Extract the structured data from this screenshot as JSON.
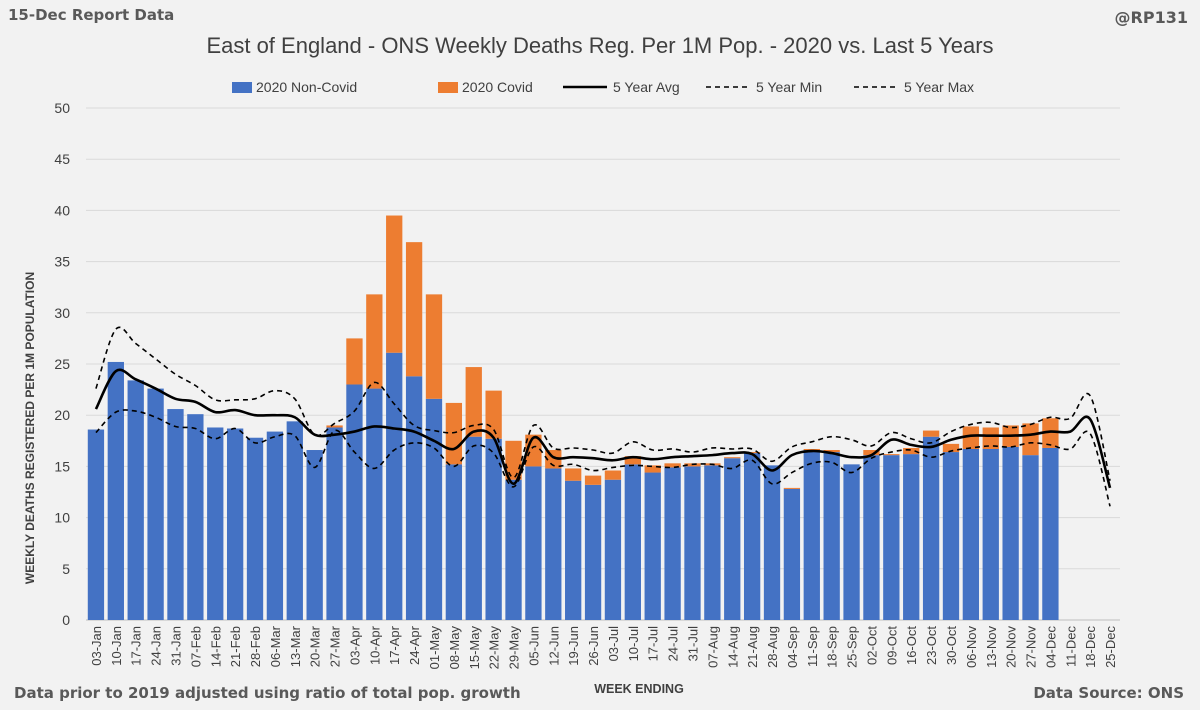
{
  "header": {
    "report_label": "15-Dec Report Data",
    "handle": "@RP131"
  },
  "footer": {
    "note": "Data prior to 2019 adjusted using ratio of total pop. growth",
    "source": "Data Source: ONS"
  },
  "colors": {
    "non_covid": "#4472c4",
    "covid": "#ed7d31",
    "avg": "#000000",
    "band": "#000000",
    "grid": "#d9d9d9",
    "text": "#404040"
  },
  "chart_data": {
    "type": "bar",
    "stacked": true,
    "title": "East of England - ONS Weekly Deaths Reg. Per 1M Pop. - 2020 vs. Last 5 Years",
    "xlabel": "WEEK ENDING",
    "ylabel": "WEEKLY DEATHS REGISTERED PER 1M POPULATION",
    "ylim": [
      0,
      50
    ],
    "yticks": [
      0,
      5,
      10,
      15,
      20,
      25,
      30,
      35,
      40,
      45,
      50
    ],
    "categories": [
      "03-Jan",
      "10-Jan",
      "17-Jan",
      "24-Jan",
      "31-Jan",
      "07-Feb",
      "14-Feb",
      "21-Feb",
      "28-Feb",
      "06-Mar",
      "13-Mar",
      "20-Mar",
      "27-Mar",
      "03-Apr",
      "10-Apr",
      "17-Apr",
      "24-Apr",
      "01-May",
      "08-May",
      "15-May",
      "22-May",
      "29-May",
      "05-Jun",
      "12-Jun",
      "19-Jun",
      "26-Jun",
      "03-Jul",
      "10-Jul",
      "17-Jul",
      "24-Jul",
      "31-Jul",
      "07-Aug",
      "14-Aug",
      "21-Aug",
      "28-Aug",
      "04-Sep",
      "11-Sep",
      "18-Sep",
      "25-Sep",
      "02-Oct",
      "09-Oct",
      "16-Oct",
      "23-Oct",
      "30-Oct",
      "06-Nov",
      "13-Nov",
      "20-Nov",
      "27-Nov",
      "04-Dec",
      "11-Dec",
      "18-Dec",
      "25-Dec"
    ],
    "series": [
      {
        "name": "2020 Non-Covid",
        "kind": "bar",
        "values": [
          18.6,
          25.2,
          23.4,
          22.6,
          20.6,
          20.1,
          18.8,
          18.7,
          17.8,
          18.4,
          19.4,
          16.6,
          18.8,
          23.0,
          22.6,
          26.1,
          23.8,
          21.6,
          15.2,
          17.9,
          17.7,
          13.7,
          15.0,
          14.8,
          13.6,
          13.2,
          13.7,
          15.2,
          14.4,
          14.9,
          15.0,
          15.1,
          15.8,
          16.3,
          15.1,
          12.8,
          16.6,
          16.4,
          15.2,
          16.1,
          16.1,
          16.2,
          17.9,
          16.4,
          16.7,
          16.7,
          16.9,
          16.1,
          16.8,
          null,
          null,
          null
        ]
      },
      {
        "name": "2020 Covid",
        "kind": "bar",
        "values": [
          0,
          0,
          0,
          0,
          0,
          0,
          0,
          0,
          0,
          0,
          0,
          0,
          0.2,
          4.5,
          9.2,
          13.4,
          13.1,
          10.2,
          6.0,
          6.8,
          4.7,
          3.8,
          3.1,
          1.8,
          1.2,
          0.9,
          0.9,
          0.8,
          0.7,
          0.4,
          0.3,
          0.2,
          0.1,
          0.1,
          0,
          0.1,
          0.1,
          0.2,
          0,
          0.5,
          0.1,
          0.6,
          0.6,
          0.8,
          2.2,
          2.1,
          2.1,
          3.1,
          2.9,
          null,
          null,
          null
        ]
      },
      {
        "name": "5 Year Avg",
        "kind": "line",
        "values": [
          20.6,
          24.3,
          23.5,
          22.6,
          21.6,
          21.3,
          20.3,
          20.5,
          20.0,
          20.0,
          19.8,
          18.1,
          18.1,
          18.4,
          18.9,
          18.7,
          18.4,
          17.5,
          16.7,
          18.4,
          17.8,
          13.3,
          17.8,
          15.9,
          15.9,
          15.8,
          15.6,
          15.9,
          15.7,
          15.9,
          16.0,
          16.1,
          16.3,
          16.2,
          14.6,
          16.1,
          16.5,
          16.3,
          15.9,
          16.1,
          17.6,
          17.1,
          16.9,
          17.6,
          18.0,
          18.0,
          18.0,
          18.1,
          18.4,
          18.4,
          19.6,
          12.9
        ]
      },
      {
        "name": "5 Year Min",
        "kind": "line",
        "dash": true,
        "values": [
          18.3,
          20.3,
          20.4,
          19.8,
          18.9,
          18.7,
          17.7,
          18.7,
          17.3,
          17.9,
          18.0,
          14.9,
          18.5,
          16.4,
          14.8,
          16.6,
          17.3,
          16.8,
          15.0,
          17.0,
          16.3,
          13.0,
          16.9,
          15.1,
          15.2,
          14.6,
          14.9,
          15.1,
          15.0,
          14.9,
          15.2,
          15.2,
          14.8,
          15.6,
          13.3,
          14.4,
          15.3,
          15.4,
          14.4,
          15.8,
          16.4,
          16.6,
          15.9,
          16.5,
          16.8,
          17.0,
          16.9,
          17.3,
          17.1,
          16.7,
          18.2,
          11.1
        ]
      },
      {
        "name": "5 Year Max",
        "kind": "line",
        "dash": true,
        "values": [
          22.6,
          28.4,
          27.0,
          25.5,
          24.0,
          22.9,
          21.5,
          21.5,
          21.6,
          22.4,
          21.6,
          18.1,
          19.2,
          20.4,
          23.2,
          21.1,
          19.0,
          18.5,
          18.3,
          19.0,
          18.6,
          13.9,
          19.0,
          16.8,
          16.8,
          16.6,
          16.3,
          17.4,
          16.6,
          16.7,
          16.4,
          16.8,
          16.7,
          16.7,
          15.5,
          16.9,
          17.4,
          17.9,
          17.6,
          17.0,
          18.3,
          17.7,
          17.3,
          18.4,
          19.1,
          19.3,
          18.8,
          19.1,
          19.8,
          19.7,
          21.9,
          13.6
        ]
      }
    ]
  }
}
